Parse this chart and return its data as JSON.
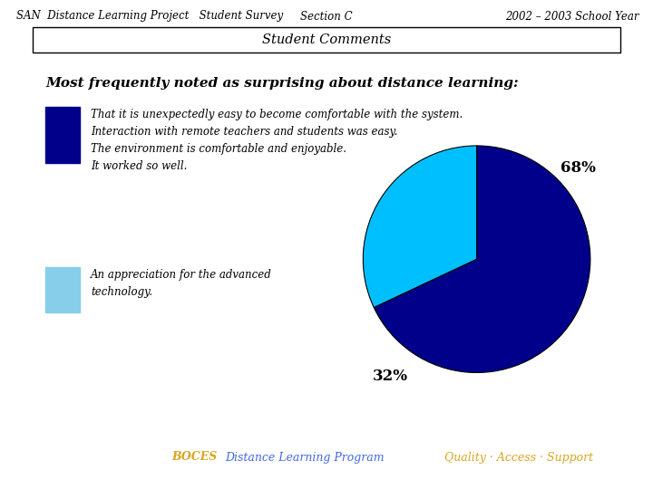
{
  "header_left": "SAN  Distance Learning Project   Student Survey",
  "header_center": "Section C",
  "header_right": "2002 – 2003 School Year",
  "box_title": "Student Comments",
  "main_title": "Most frequently noted as surprising about distance learning:",
  "pie_values": [
    68,
    32
  ],
  "pie_colors": [
    "#00008B",
    "#00BFFF"
  ],
  "pie_labels": [
    "68%",
    "32%"
  ],
  "legend_item1_color": "#00008B",
  "legend_item1_text": "That it is unexpectedly easy to become comfortable with the system.\nInteraction with remote teachers and students was easy.\nThe environment is comfortable and enjoyable.\nIt worked so well.",
  "legend_item2_color": "#87CEEB",
  "legend_item2_text": "An appreciation for the advanced\ntechnology.",
  "footer_boces": "BOCES",
  "footer_program": "Distance Learning Program",
  "footer_quality": "Quality · Access · Support",
  "footer_color_boces": "#DAA520",
  "footer_color_program": "#4169E1",
  "footer_color_quality": "#DAA520",
  "bg_color": "#FFFFFF"
}
